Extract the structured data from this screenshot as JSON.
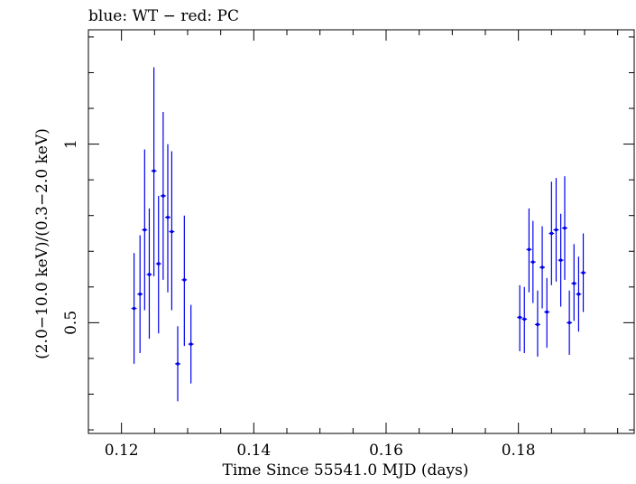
{
  "chart_data": {
    "type": "scatter",
    "title": "blue: WT − red: PC",
    "xlabel": "Time Since 55541.0 MJD (days)",
    "ylabel": "(2.0−10.0 keV)/(0.3−2.0 keV)",
    "xlim": [
      0.115,
      0.1975
    ],
    "ylim": [
      0.19,
      1.32
    ],
    "xticks": [
      0.12,
      0.14,
      0.16,
      0.18
    ],
    "xtick_labels": [
      "0.12",
      "0.14",
      "0.16",
      "0.18"
    ],
    "yticks": [
      0.5,
      1.0
    ],
    "ytick_labels": [
      "0.5",
      "1"
    ],
    "grid": false,
    "series": [
      {
        "color": "#0000ee",
        "points": [
          {
            "x": 0.1219,
            "y": 0.54,
            "ylow": 0.385,
            "yhigh": 0.695,
            "xerr": 0.0004
          },
          {
            "x": 0.1228,
            "y": 0.58,
            "ylow": 0.415,
            "yhigh": 0.745,
            "xerr": 0.0004
          },
          {
            "x": 0.1235,
            "y": 0.76,
            "ylow": 0.535,
            "yhigh": 0.985,
            "xerr": 0.0004
          },
          {
            "x": 0.1242,
            "y": 0.635,
            "ylow": 0.455,
            "yhigh": 0.82,
            "xerr": 0.0004
          },
          {
            "x": 0.1249,
            "y": 0.925,
            "ylow": 0.63,
            "yhigh": 1.215,
            "xerr": 0.0004
          },
          {
            "x": 0.1256,
            "y": 0.665,
            "ylow": 0.47,
            "yhigh": 0.855,
            "xerr": 0.0004
          },
          {
            "x": 0.1263,
            "y": 0.855,
            "ylow": 0.62,
            "yhigh": 1.09,
            "xerr": 0.0004
          },
          {
            "x": 0.127,
            "y": 0.795,
            "ylow": 0.585,
            "yhigh": 1.0,
            "xerr": 0.0004
          },
          {
            "x": 0.1276,
            "y": 0.755,
            "ylow": 0.535,
            "yhigh": 0.98,
            "xerr": 0.0004
          },
          {
            "x": 0.1285,
            "y": 0.385,
            "ylow": 0.28,
            "yhigh": 0.49,
            "xerr": 0.0004
          },
          {
            "x": 0.1295,
            "y": 0.62,
            "ylow": 0.435,
            "yhigh": 0.8,
            "xerr": 0.0004
          },
          {
            "x": 0.1305,
            "y": 0.44,
            "ylow": 0.33,
            "yhigh": 0.55,
            "xerr": 0.0004
          },
          {
            "x": 0.1802,
            "y": 0.515,
            "ylow": 0.42,
            "yhigh": 0.605,
            "xerr": 0.0004
          },
          {
            "x": 0.1809,
            "y": 0.51,
            "ylow": 0.415,
            "yhigh": 0.6,
            "xerr": 0.0004
          },
          {
            "x": 0.1816,
            "y": 0.705,
            "ylow": 0.585,
            "yhigh": 0.82,
            "xerr": 0.0004
          },
          {
            "x": 0.1822,
            "y": 0.67,
            "ylow": 0.555,
            "yhigh": 0.785,
            "xerr": 0.0004
          },
          {
            "x": 0.1829,
            "y": 0.495,
            "ylow": 0.405,
            "yhigh": 0.59,
            "xerr": 0.0004
          },
          {
            "x": 0.1836,
            "y": 0.655,
            "ylow": 0.54,
            "yhigh": 0.77,
            "xerr": 0.0004
          },
          {
            "x": 0.1843,
            "y": 0.53,
            "ylow": 0.43,
            "yhigh": 0.625,
            "xerr": 0.0004
          },
          {
            "x": 0.185,
            "y": 0.75,
            "ylow": 0.605,
            "yhigh": 0.895,
            "xerr": 0.0004
          },
          {
            "x": 0.1857,
            "y": 0.76,
            "ylow": 0.615,
            "yhigh": 0.905,
            "xerr": 0.0004
          },
          {
            "x": 0.1864,
            "y": 0.675,
            "ylow": 0.545,
            "yhigh": 0.805,
            "xerr": 0.0004
          },
          {
            "x": 0.187,
            "y": 0.765,
            "ylow": 0.62,
            "yhigh": 0.91,
            "xerr": 0.0004
          },
          {
            "x": 0.1877,
            "y": 0.5,
            "ylow": 0.41,
            "yhigh": 0.59,
            "xerr": 0.0004
          },
          {
            "x": 0.1884,
            "y": 0.61,
            "ylow": 0.505,
            "yhigh": 0.72,
            "xerr": 0.0004
          },
          {
            "x": 0.1891,
            "y": 0.58,
            "ylow": 0.475,
            "yhigh": 0.685,
            "xerr": 0.0004
          },
          {
            "x": 0.1898,
            "y": 0.64,
            "ylow": 0.53,
            "yhigh": 0.75,
            "xerr": 0.0004
          }
        ]
      }
    ]
  }
}
